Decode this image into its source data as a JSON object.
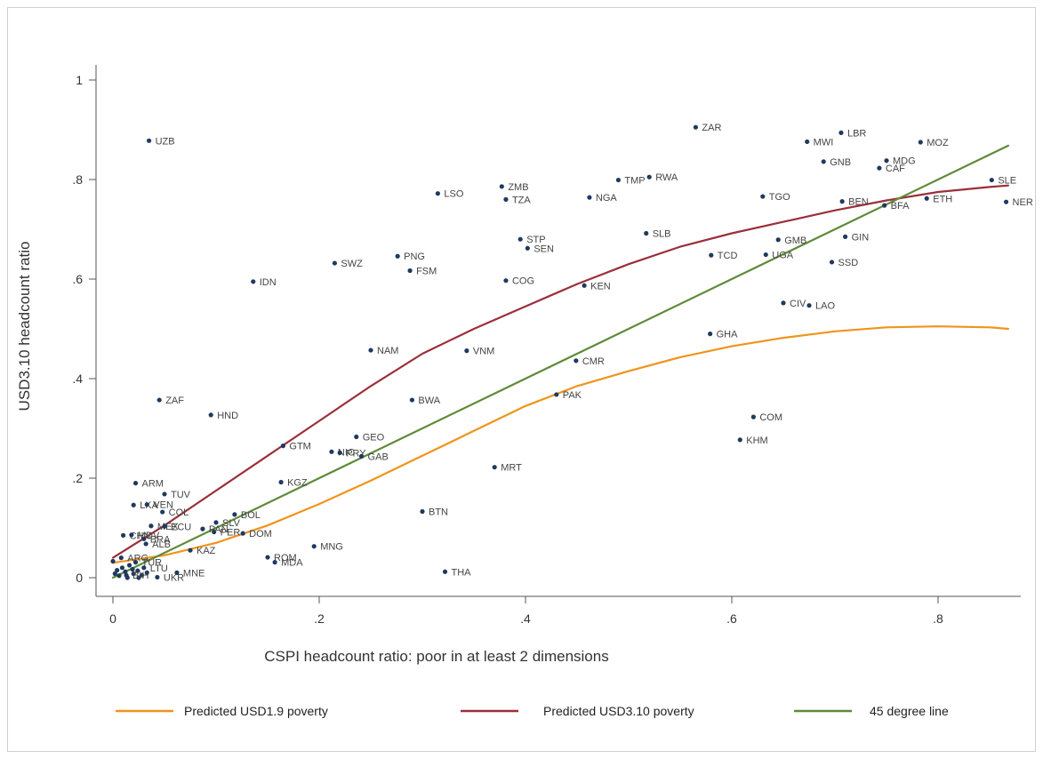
{
  "chart_data": {
    "type": "scatter",
    "title": "",
    "xlabel": "CSPI headcount ratio: poor in at least 2 dimensions",
    "ylabel": "USD3.10 headcount ratio",
    "xlim": [
      -0.02,
      0.88
    ],
    "ylim": [
      -0.03,
      1.05
    ],
    "x_ticks": [
      {
        "value": 0,
        "label": "0"
      },
      {
        "value": 0.2,
        "label": ".2"
      },
      {
        "value": 0.4,
        "label": ".4"
      },
      {
        "value": 0.6,
        "label": ".6"
      },
      {
        "value": 0.8,
        "label": ".8"
      }
    ],
    "y_ticks": [
      {
        "value": 0,
        "label": "0"
      },
      {
        "value": 0.2,
        "label": ".2"
      },
      {
        "value": 0.4,
        "label": ".4"
      },
      {
        "value": 0.6,
        "label": ".6"
      },
      {
        "value": 0.8,
        "label": ".8"
      },
      {
        "value": 1,
        "label": "1"
      }
    ],
    "grid": false,
    "legend_position": "bottom",
    "marker_color": "#1f3a5f",
    "points": [
      {
        "label": "UZB",
        "x": 0.035,
        "y": 0.878
      },
      {
        "label": "ZAR",
        "x": 0.565,
        "y": 0.905
      },
      {
        "label": "LBR",
        "x": 0.706,
        "y": 0.894
      },
      {
        "label": "MWI",
        "x": 0.673,
        "y": 0.876
      },
      {
        "label": "MOZ",
        "x": 0.783,
        "y": 0.875
      },
      {
        "label": "GNB",
        "x": 0.689,
        "y": 0.836
      },
      {
        "label": "MDG",
        "x": 0.75,
        "y": 0.838
      },
      {
        "label": "CAF",
        "x": 0.743,
        "y": 0.823
      },
      {
        "label": "SLE",
        "x": 0.852,
        "y": 0.799
      },
      {
        "label": "TMP",
        "x": 0.49,
        "y": 0.799
      },
      {
        "label": "RWA",
        "x": 0.52,
        "y": 0.805
      },
      {
        "label": "ZMB",
        "x": 0.377,
        "y": 0.786
      },
      {
        "label": "LSO",
        "x": 0.315,
        "y": 0.772
      },
      {
        "label": "TZA",
        "x": 0.381,
        "y": 0.76
      },
      {
        "label": "NGA",
        "x": 0.462,
        "y": 0.764
      },
      {
        "label": "TGO",
        "x": 0.63,
        "y": 0.766
      },
      {
        "label": "BEN",
        "x": 0.707,
        "y": 0.756
      },
      {
        "label": "ETH",
        "x": 0.789,
        "y": 0.762
      },
      {
        "label": "NER",
        "x": 0.866,
        "y": 0.755
      },
      {
        "label": "BFA",
        "x": 0.748,
        "y": 0.748
      },
      {
        "label": "SLB",
        "x": 0.517,
        "y": 0.692
      },
      {
        "label": "GIN",
        "x": 0.71,
        "y": 0.685
      },
      {
        "label": "STP",
        "x": 0.395,
        "y": 0.68
      },
      {
        "label": "GMB",
        "x": 0.645,
        "y": 0.679
      },
      {
        "label": "SEN",
        "x": 0.402,
        "y": 0.662
      },
      {
        "label": "TCD",
        "x": 0.58,
        "y": 0.648
      },
      {
        "label": "UGA",
        "x": 0.633,
        "y": 0.649
      },
      {
        "label": "PNG",
        "x": 0.276,
        "y": 0.646
      },
      {
        "label": "SSD",
        "x": 0.697,
        "y": 0.634
      },
      {
        "label": "SWZ",
        "x": 0.215,
        "y": 0.632
      },
      {
        "label": "FSM",
        "x": 0.288,
        "y": 0.617
      },
      {
        "label": "IDN",
        "x": 0.136,
        "y": 0.595
      },
      {
        "label": "COG",
        "x": 0.381,
        "y": 0.597
      },
      {
        "label": "KEN",
        "x": 0.457,
        "y": 0.587
      },
      {
        "label": "CIV",
        "x": 0.65,
        "y": 0.552
      },
      {
        "label": "LAO",
        "x": 0.675,
        "y": 0.547
      },
      {
        "label": "GHA",
        "x": 0.579,
        "y": 0.49
      },
      {
        "label": "NAM",
        "x": 0.25,
        "y": 0.457
      },
      {
        "label": "VNM",
        "x": 0.343,
        "y": 0.456
      },
      {
        "label": "CMR",
        "x": 0.449,
        "y": 0.436
      },
      {
        "label": "PAK",
        "x": 0.43,
        "y": 0.368
      },
      {
        "label": "ZAF",
        "x": 0.045,
        "y": 0.357
      },
      {
        "label": "BWA",
        "x": 0.29,
        "y": 0.357
      },
      {
        "label": "HND",
        "x": 0.095,
        "y": 0.327
      },
      {
        "label": "COM",
        "x": 0.621,
        "y": 0.323
      },
      {
        "label": "GEO",
        "x": 0.236,
        "y": 0.283
      },
      {
        "label": "KHM",
        "x": 0.608,
        "y": 0.277
      },
      {
        "label": "GTM",
        "x": 0.165,
        "y": 0.265
      },
      {
        "label": "NIC",
        "x": 0.212,
        "y": 0.253
      },
      {
        "label": "PRY",
        "x": 0.22,
        "y": 0.251
      },
      {
        "label": "GAB",
        "x": 0.241,
        "y": 0.244
      },
      {
        "label": "MRT",
        "x": 0.37,
        "y": 0.222
      },
      {
        "label": "KGZ",
        "x": 0.163,
        "y": 0.192
      },
      {
        "label": "ARM",
        "x": 0.022,
        "y": 0.19
      },
      {
        "label": "TUV",
        "x": 0.05,
        "y": 0.168
      },
      {
        "label": "LKA",
        "x": 0.02,
        "y": 0.146
      },
      {
        "label": "VEN",
        "x": 0.033,
        "y": 0.147
      },
      {
        "label": "BTN",
        "x": 0.3,
        "y": 0.133
      },
      {
        "label": "COL",
        "x": 0.048,
        "y": 0.132
      },
      {
        "label": "BOL",
        "x": 0.118,
        "y": 0.127
      },
      {
        "label": "SLV",
        "x": 0.1,
        "y": 0.111
      },
      {
        "label": "MEX",
        "x": 0.037,
        "y": 0.104
      },
      {
        "label": "ECU",
        "x": 0.05,
        "y": 0.103
      },
      {
        "label": "PER",
        "x": 0.098,
        "y": 0.092
      },
      {
        "label": "DOM",
        "x": 0.126,
        "y": 0.089
      },
      {
        "label": "PAN",
        "x": 0.087,
        "y": 0.098
      },
      {
        "label": "MNG",
        "x": 0.195,
        "y": 0.063
      },
      {
        "label": "KAZ",
        "x": 0.075,
        "y": 0.055
      },
      {
        "label": "CHN",
        "x": 0.01,
        "y": 0.085
      },
      {
        "label": "MDV",
        "x": 0.018,
        "y": 0.086
      },
      {
        "label": "BRA",
        "x": 0.03,
        "y": 0.078
      },
      {
        "label": "ALB",
        "x": 0.032,
        "y": 0.068
      },
      {
        "label": "ROM",
        "x": 0.15,
        "y": 0.041
      },
      {
        "label": "ARG",
        "x": 0.008,
        "y": 0.04
      },
      {
        "label": "TUR",
        "x": 0.022,
        "y": 0.031
      },
      {
        "label": "MDA",
        "x": 0.157,
        "y": 0.031
      },
      {
        "label": "LTU",
        "x": 0.03,
        "y": 0.02
      },
      {
        "label": "MNE",
        "x": 0.062,
        "y": 0.01
      },
      {
        "label": "UKR",
        "x": 0.043,
        "y": 0.001
      },
      {
        "label": "THA",
        "x": 0.322,
        "y": 0.012
      },
      {
        "label": "BIH",
        "x": 0.013,
        "y": 0.005
      }
    ],
    "unlabeled_points": [
      {
        "x": 0.0,
        "y": 0.033
      },
      {
        "x": 0.004,
        "y": 0.015
      },
      {
        "x": 0.006,
        "y": 0.004
      },
      {
        "x": 0.009,
        "y": 0.02
      },
      {
        "x": 0.012,
        "y": 0.012
      },
      {
        "x": 0.016,
        "y": 0.025
      },
      {
        "x": 0.02,
        "y": 0.008
      },
      {
        "x": 0.024,
        "y": 0.014
      },
      {
        "x": 0.028,
        "y": 0.005
      },
      {
        "x": 0.014,
        "y": 0.0
      },
      {
        "x": 0.002,
        "y": 0.008
      },
      {
        "x": 0.019,
        "y": 0.017
      },
      {
        "x": 0.025,
        "y": 0.0
      },
      {
        "x": 0.033,
        "y": 0.01
      }
    ],
    "series": [
      {
        "name": "Predicted USD1.9 poverty",
        "color": "#f0941c",
        "x": [
          0,
          0.05,
          0.1,
          0.15,
          0.2,
          0.25,
          0.3,
          0.35,
          0.4,
          0.45,
          0.5,
          0.55,
          0.6,
          0.65,
          0.7,
          0.75,
          0.8,
          0.85,
          0.868
        ],
        "y": [
          0.03,
          0.045,
          0.07,
          0.105,
          0.148,
          0.195,
          0.245,
          0.295,
          0.345,
          0.385,
          0.415,
          0.443,
          0.465,
          0.482,
          0.495,
          0.503,
          0.505,
          0.503,
          0.5
        ]
      },
      {
        "name": "Predicted USD3.10 poverty",
        "color": "#9b2f3b",
        "x": [
          0,
          0.05,
          0.1,
          0.15,
          0.2,
          0.25,
          0.3,
          0.35,
          0.4,
          0.45,
          0.5,
          0.55,
          0.6,
          0.65,
          0.7,
          0.75,
          0.8,
          0.85,
          0.868
        ],
        "y": [
          0.04,
          0.105,
          0.175,
          0.245,
          0.315,
          0.385,
          0.45,
          0.5,
          0.545,
          0.59,
          0.63,
          0.665,
          0.692,
          0.715,
          0.738,
          0.758,
          0.775,
          0.785,
          0.788
        ]
      },
      {
        "name": "45 degree line",
        "color": "#5f8a37",
        "x": [
          0,
          0.868
        ],
        "y": [
          0,
          0.868
        ]
      }
    ]
  }
}
